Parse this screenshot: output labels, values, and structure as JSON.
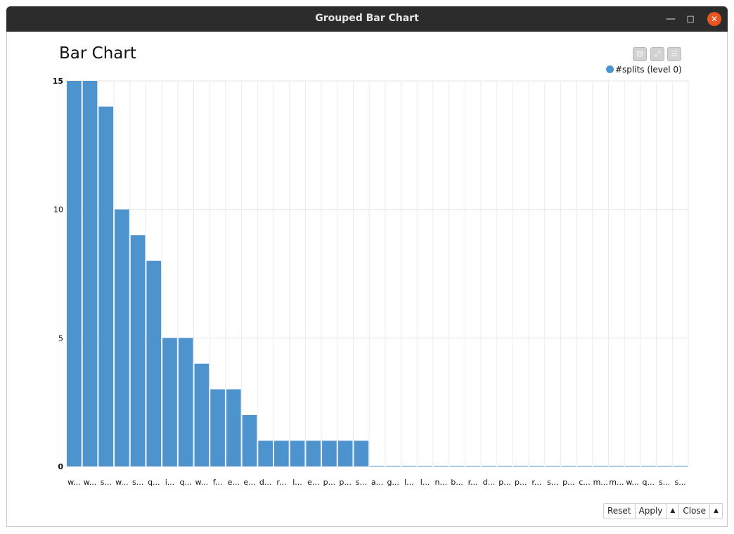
{
  "window": {
    "title": "Grouped Bar Chart"
  },
  "controls": {
    "reset": "Reset",
    "apply": "Apply",
    "close": "Close"
  },
  "chart_data": {
    "type": "bar",
    "title": "Bar Chart",
    "xlabel": "",
    "ylabel": "",
    "ylim": [
      0,
      15
    ],
    "yticks": [
      0,
      5,
      10,
      15
    ],
    "grid": true,
    "legend_position": "top-right",
    "categories": [
      "w...",
      "w...",
      "s...",
      "w...",
      "s...",
      "q...",
      "i...",
      "q...",
      "w...",
      "f...",
      "e...",
      "e...",
      "d...",
      "r...",
      "l...",
      "e...",
      "p...",
      "p...",
      "s...",
      "a...",
      "g...",
      "l...",
      "l...",
      "n...",
      "b...",
      "r...",
      "d...",
      "p...",
      "p...",
      "r...",
      "s...",
      "p...",
      "c...",
      "m...",
      "m...",
      "w...",
      "q...",
      "s...",
      "s..."
    ],
    "series": [
      {
        "name": "#splits (level 0)",
        "color": "#4d94cf",
        "values": [
          15,
          15,
          14,
          10,
          9,
          8,
          5,
          5,
          4,
          3,
          3,
          2,
          1,
          1,
          1,
          1,
          1,
          1,
          1,
          0,
          0,
          0,
          0,
          0,
          0,
          0,
          0,
          0,
          0,
          0,
          0,
          0,
          0,
          0,
          0,
          0,
          0,
          0,
          0
        ]
      }
    ]
  }
}
